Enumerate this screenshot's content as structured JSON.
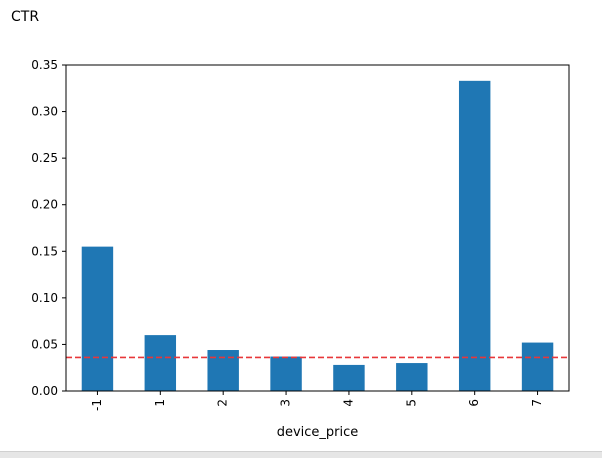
{
  "cell_label": "CTR",
  "chart_data": {
    "type": "bar",
    "xlabel": "device_price",
    "ylabel": "",
    "title": "",
    "categories": [
      "-1",
      "1",
      "2",
      "3",
      "4",
      "5",
      "6",
      "7"
    ],
    "values": [
      0.155,
      0.06,
      0.044,
      0.037,
      0.028,
      0.03,
      0.333,
      0.052
    ],
    "ylim": [
      0,
      0.35
    ],
    "yticks": [
      0.0,
      0.05,
      0.1,
      0.15,
      0.2,
      0.25,
      0.3,
      0.35
    ],
    "ytick_labels": [
      "0.00",
      "0.05",
      "0.10",
      "0.15",
      "0.20",
      "0.25",
      "0.30",
      "0.35"
    ],
    "reference_line": {
      "value": 0.036,
      "style": "dashed"
    },
    "colors": {
      "bar": "#1f77b4",
      "reference_line": "#e8373a"
    },
    "grid": false
  }
}
